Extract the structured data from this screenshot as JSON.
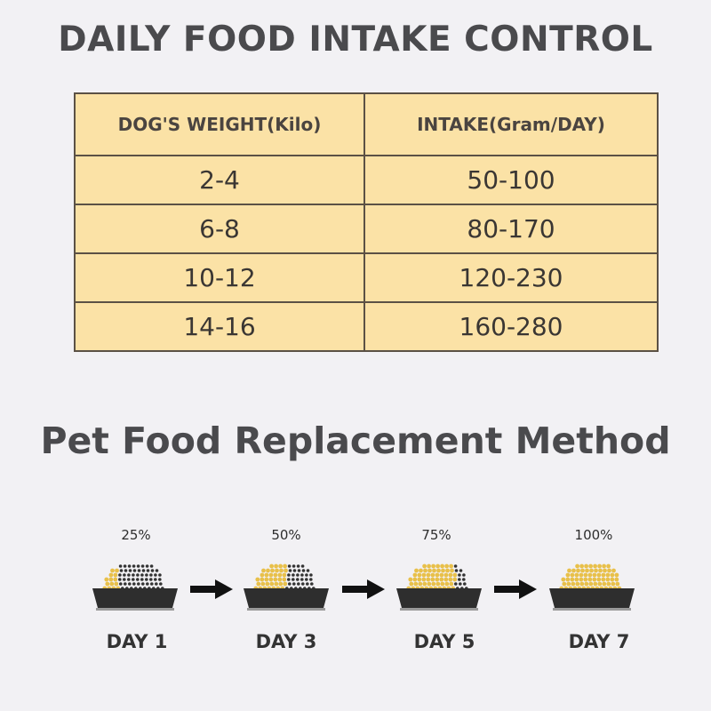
{
  "title": "DAILY FOOD INTAKE CONTROL",
  "table": {
    "headers": [
      "DOG'S WEIGHT(Kilo)",
      "INTAKE(Gram/DAY)"
    ],
    "rows": [
      [
        "2-4",
        "50-100"
      ],
      [
        "6-8",
        "80-170"
      ],
      [
        "10-12",
        "120-230"
      ],
      [
        "14-16",
        "160-280"
      ]
    ]
  },
  "method": {
    "title": "Pet Food Replacement Method",
    "steps": [
      {
        "percent": "25%",
        "day": "DAY 1",
        "new_fraction": 0.25
      },
      {
        "percent": "50%",
        "day": "DAY 3",
        "new_fraction": 0.5
      },
      {
        "percent": "75%",
        "day": "DAY 5",
        "new_fraction": 0.75
      },
      {
        "percent": "100%",
        "day": "DAY 7",
        "new_fraction": 1.0
      }
    ]
  },
  "colors": {
    "table_bg": "#fbe2a6",
    "new_food": "#e8c04a",
    "old_food": "#333333",
    "bowl": "#2e2e2e"
  }
}
